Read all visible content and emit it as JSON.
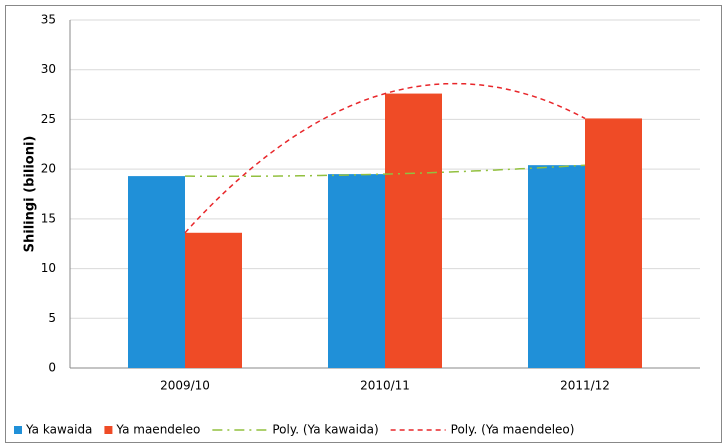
{
  "chart_data": {
    "type": "bar",
    "y_label": "Shilingi (bilioni)",
    "categories": [
      "2009/10",
      "2010/11",
      "2011/12"
    ],
    "series": [
      {
        "name": "Ya kawaida",
        "color": "#2090d8",
        "values": [
          19.3,
          19.5,
          20.4
        ],
        "trendline": {
          "name": "Poly. (Ya kawaida)",
          "type": "poly",
          "color": "#92c03f",
          "dash": "dash-dot"
        }
      },
      {
        "name": "Ya maendeleo",
        "color": "#ef4b26",
        "values": [
          13.6,
          27.6,
          25.1
        ],
        "trendline": {
          "name": "Poly. (Ya maendeleo)",
          "type": "poly",
          "color": "#e8262a",
          "dash": "dash"
        }
      }
    ],
    "ylim": [
      0,
      35
    ],
    "yticks": [
      0,
      5,
      10,
      15,
      20,
      25,
      30,
      35
    ],
    "grid": true,
    "legend": "bottom"
  }
}
